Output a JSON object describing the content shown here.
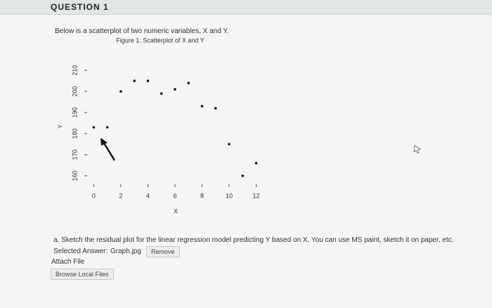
{
  "header": {
    "title": "QUESTION 1"
  },
  "question": {
    "intro": "Below is a scatterplot of two numeric variables, X and Y.",
    "prompt": "a. Sketch the residual plot for the linear regression model predicting Y based on X. You can use MS paint, sketch it on paper, etc.",
    "selected_answer_label": "Selected Answer:",
    "selected_answer_file": "Graph.jpg",
    "remove_button": "Remove",
    "attach_label": "Attach File",
    "browse_button": "Browse Local Files"
  },
  "chart_data": {
    "type": "scatter",
    "title": "Figure 1: Scatterplot of X and Y",
    "x_label": "X",
    "y_label": "Y",
    "x": [
      0,
      1,
      2,
      3,
      4,
      5,
      6,
      7,
      8,
      9,
      10,
      11,
      12
    ],
    "values": [
      183,
      183,
      200,
      205,
      205,
      199,
      201,
      204,
      193,
      192,
      175,
      160,
      166
    ],
    "color": "#111111",
    "xlim": [
      -0.8,
      12.7
    ],
    "ylim": [
      155,
      214
    ],
    "xticks": [
      0,
      2,
      4,
      6,
      8,
      10,
      12
    ],
    "yticks": [
      160,
      170,
      180,
      190,
      200,
      210
    ]
  }
}
